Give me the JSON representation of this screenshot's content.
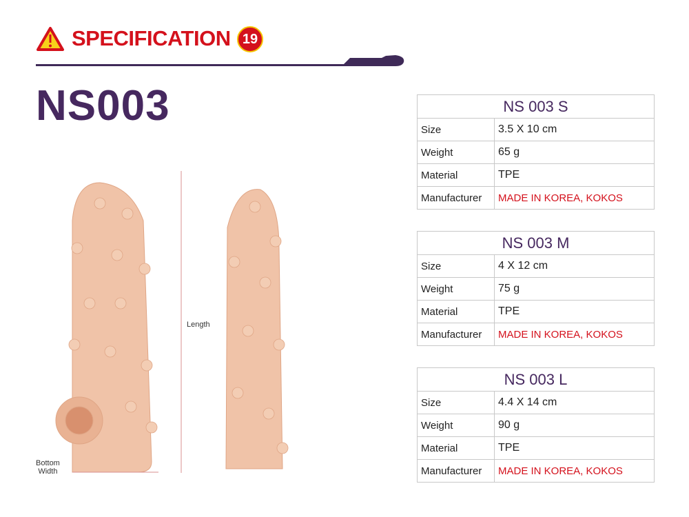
{
  "header": {
    "title": "SPECIFICATION",
    "badge": "19",
    "warning_icon": "warning-triangle-icon"
  },
  "model": "NS003",
  "dimensions": {
    "length_label": "Length",
    "bottom_width_label": "Bottom\nWidth"
  },
  "colors": {
    "accent_red": "#d4111c",
    "brand_purple": "#46285f",
    "skin": "#f0c3a8"
  },
  "tables": [
    {
      "title": "NS 003 S",
      "rows": [
        {
          "label": "Size",
          "value": "3.5 X 10 cm"
        },
        {
          "label": "Weight",
          "value": "65 g"
        },
        {
          "label": "Material",
          "value": "TPE"
        },
        {
          "label": "Manufacturer",
          "value": "MADE IN KOREA, KOKOS"
        }
      ]
    },
    {
      "title": "NS 003 M",
      "rows": [
        {
          "label": "Size",
          "value": "4 X 12 cm"
        },
        {
          "label": "Weight",
          "value": "75 g"
        },
        {
          "label": "Material",
          "value": "TPE"
        },
        {
          "label": "Manufacturer",
          "value": "MADE IN KOREA, KOKOS"
        }
      ]
    },
    {
      "title": "NS 003 L",
      "rows": [
        {
          "label": "Size",
          "value": "4.4 X 14 cm"
        },
        {
          "label": "Weight",
          "value": "90 g"
        },
        {
          "label": "Material",
          "value": "TPE"
        },
        {
          "label": "Manufacturer",
          "value": "MADE IN KOREA, KOKOS"
        }
      ]
    }
  ]
}
